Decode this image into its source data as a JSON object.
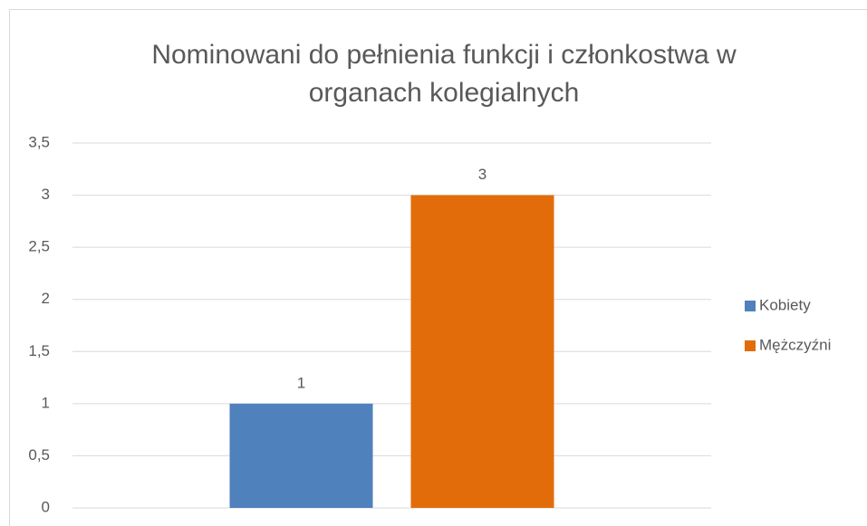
{
  "chart_data": {
    "type": "bar",
    "title": "Nominowani do pełnienia funkcji i członkostwa w organach kolegialnych",
    "categories": [
      null
    ],
    "series": [
      {
        "name": "Kobiety",
        "color": "#4f81bd",
        "values": [
          1
        ]
      },
      {
        "name": "Mężczyźni",
        "color": "#e36c0a",
        "values": [
          3
        ]
      }
    ],
    "ylim": [
      0,
      3.5
    ],
    "yticks": [
      0,
      {
        "value": 0.5,
        "label": "0,5"
      },
      1,
      {
        "value": 1.5,
        "label": "1,5"
      },
      2,
      {
        "value": 2.5,
        "label": "2,5"
      },
      3,
      {
        "value": 3.5,
        "label": "3,5"
      }
    ],
    "grid": true,
    "legend": "right",
    "data_labels": true
  }
}
